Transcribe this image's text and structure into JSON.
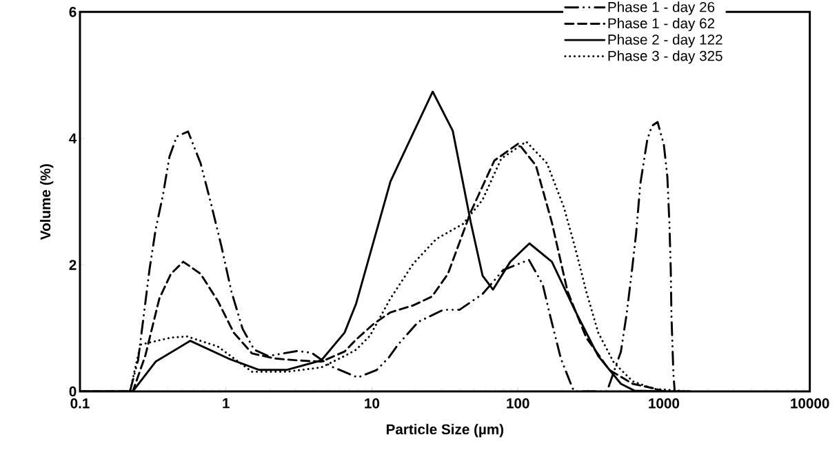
{
  "chart_data": {
    "type": "line",
    "xlabel": "Particle Size (µm)",
    "ylabel": "Volume (%)",
    "log": "x",
    "xlim": [
      0.1,
      10000
    ],
    "ylim": [
      0,
      6
    ],
    "xticks": [
      {
        "value": 0.1,
        "label": "0.1"
      },
      1,
      10,
      100,
      1000,
      10000
    ],
    "yticks": [
      0,
      2,
      4,
      6
    ],
    "grid": false,
    "legend": "top right",
    "marker": "none",
    "series": [
      {
        "name": "Phase 1 - day 26",
        "color": "#000000",
        "line_style": "dashdotdotted",
        "x": [
          0.22,
          0.25,
          0.27,
          0.3,
          0.33,
          0.37,
          0.41,
          0.46,
          0.55,
          0.67,
          0.79,
          0.93,
          1.09,
          1.3,
          1.56,
          1.95,
          3.1,
          3.87,
          5.2,
          8.0,
          10.8,
          13.1,
          15.1,
          20.8,
          30.8,
          39.8,
          57.3,
          79.4,
          119,
          148,
          167,
          197,
          237,
          245,
          408,
          508,
          555,
          599,
          646,
          690,
          770,
          830,
          906,
          1000,
          1057,
          1091,
          1115,
          1127,
          1163,
          1187
        ],
        "values": [
          0,
          0.49,
          1.1,
          1.94,
          2.56,
          3.1,
          3.71,
          4.03,
          4.11,
          3.61,
          2.97,
          2.3,
          1.58,
          0.99,
          0.66,
          0.56,
          0.64,
          0.61,
          0.4,
          0.22,
          0.34,
          0.54,
          0.74,
          1.1,
          1.29,
          1.29,
          1.54,
          1.92,
          2.08,
          1.69,
          1.18,
          0.52,
          0.05,
          0,
          0,
          0.63,
          1.21,
          1.83,
          2.5,
          3.28,
          3.98,
          4.2,
          4.26,
          3.9,
          3.39,
          2.67,
          1.94,
          1.21,
          0.27,
          0
        ]
      },
      {
        "name": "Phase 1 - day 62",
        "color": "#000000",
        "line_style": "dashed",
        "x": [
          0.1,
          0.23,
          0.28,
          0.35,
          0.42,
          0.51,
          0.67,
          0.88,
          1.13,
          1.51,
          2.17,
          3.1,
          4.5,
          6.5,
          7.8,
          10.3,
          13.4,
          19.2,
          25.8,
          33.2,
          47.6,
          69,
          101,
          133,
          171,
          219,
          294,
          423,
          612,
          850,
          1000
        ],
        "values": [
          0,
          0,
          0.56,
          1.47,
          1.86,
          2.05,
          1.86,
          1.43,
          0.93,
          0.6,
          0.52,
          0.49,
          0.47,
          0.63,
          0.82,
          1.07,
          1.25,
          1.36,
          1.5,
          1.86,
          2.84,
          3.65,
          3.92,
          3.57,
          2.67,
          1.58,
          0.85,
          0.34,
          0.12,
          0.05,
          0
        ]
      },
      {
        "name": "Phase 2 - day 122",
        "color": "#000000",
        "line_style": "solid",
        "x": [
          0.1,
          0.23,
          0.33,
          0.57,
          1.04,
          1.69,
          2.6,
          4.5,
          6.5,
          7.8,
          13.4,
          26.1,
          35.8,
          47.6,
          57.3,
          67.5,
          88.7,
          120,
          171,
          245,
          355,
          508,
          631,
          1000,
          1514
        ],
        "values": [
          0,
          0,
          0.47,
          0.8,
          0.52,
          0.34,
          0.34,
          0.49,
          0.93,
          1.39,
          3.32,
          4.74,
          4.12,
          2.67,
          1.83,
          1.61,
          2.05,
          2.34,
          2.05,
          1.29,
          0.56,
          0.12,
          0.01,
          0,
          0
        ]
      },
      {
        "name": "Phase 3 - day 325",
        "color": "#000000",
        "line_style": "dotted",
        "x": [
          0.1,
          0.22,
          0.26,
          0.42,
          0.54,
          0.88,
          1.51,
          2.6,
          4.5,
          6.5,
          7.8,
          9.7,
          13.4,
          19.2,
          27.6,
          42.2,
          57.3,
          76.9,
          114,
          158,
          206,
          245,
          294,
          355,
          456,
          612,
          850,
          1500
        ],
        "values": [
          0,
          0,
          0.74,
          0.85,
          0.87,
          0.71,
          0.31,
          0.31,
          0.38,
          0.56,
          0.66,
          0.88,
          1.47,
          2.02,
          2.41,
          2.65,
          3.03,
          3.68,
          3.95,
          3.61,
          2.92,
          2.3,
          1.58,
          0.93,
          0.45,
          0.16,
          0.04,
          0
        ]
      }
    ]
  }
}
